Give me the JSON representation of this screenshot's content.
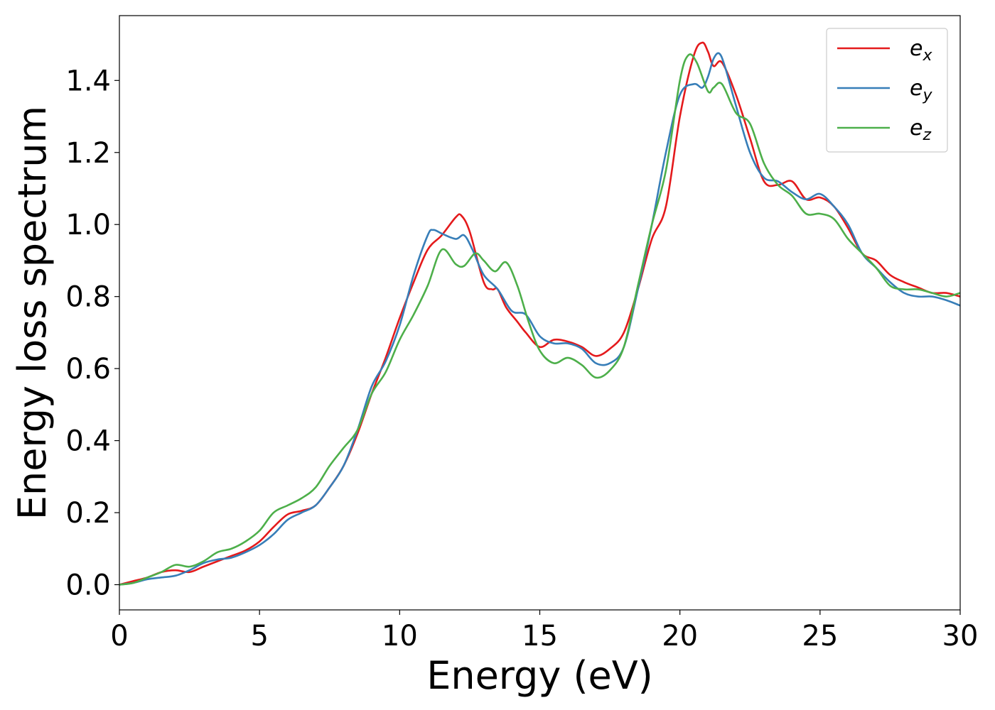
{
  "chart_data": {
    "type": "line",
    "xlabel": "Energy (eV)",
    "ylabel": "Energy loss spectrum",
    "xlim": [
      0,
      30
    ],
    "ylim": [
      -0.07,
      1.58
    ],
    "xticks": [
      0,
      5,
      10,
      15,
      20,
      25,
      30
    ],
    "xtick_labels": [
      "0",
      "5",
      "10",
      "15",
      "20",
      "25",
      "30"
    ],
    "yticks": [
      0.0,
      0.2,
      0.4,
      0.6,
      0.8,
      1.0,
      1.2,
      1.4
    ],
    "ytick_labels": [
      "0.0",
      "0.2",
      "0.4",
      "0.6",
      "0.8",
      "1.0",
      "1.2",
      "1.4"
    ],
    "grid": false,
    "legend_position": "top-right",
    "series": [
      {
        "name": "e_x",
        "label_base": "e",
        "label_sub": "x",
        "color": "#e41a1c",
        "x": [
          0,
          0.5,
          1,
          1.5,
          2,
          2.5,
          3,
          3.5,
          4,
          4.5,
          5,
          5.5,
          6,
          6.5,
          7,
          7.5,
          8,
          8.5,
          9,
          9.5,
          10,
          10.5,
          11,
          11.5,
          12,
          12.2,
          12.5,
          13,
          13.3,
          13.5,
          13.8,
          14.2,
          14.5,
          15,
          15.5,
          16,
          16.5,
          17,
          17.5,
          18,
          18.5,
          19,
          19.5,
          20,
          20.5,
          20.8,
          21,
          21.2,
          21.5,
          22,
          22.5,
          23,
          23.5,
          24,
          24.5,
          25,
          25.5,
          26,
          26.5,
          27,
          27.5,
          28,
          28.5,
          29,
          29.5,
          30
        ],
        "y": [
          0.0,
          0.01,
          0.02,
          0.035,
          0.04,
          0.035,
          0.05,
          0.065,
          0.08,
          0.095,
          0.12,
          0.16,
          0.195,
          0.205,
          0.22,
          0.27,
          0.33,
          0.42,
          0.53,
          0.63,
          0.74,
          0.84,
          0.93,
          0.97,
          1.02,
          1.025,
          0.98,
          0.84,
          0.82,
          0.82,
          0.77,
          0.73,
          0.7,
          0.66,
          0.68,
          0.675,
          0.66,
          0.635,
          0.655,
          0.7,
          0.82,
          0.96,
          1.05,
          1.3,
          1.47,
          1.505,
          1.48,
          1.44,
          1.45,
          1.36,
          1.24,
          1.12,
          1.11,
          1.12,
          1.07,
          1.075,
          1.05,
          0.99,
          0.92,
          0.9,
          0.86,
          0.84,
          0.825,
          0.81,
          0.81,
          0.8
        ]
      },
      {
        "name": "e_y",
        "label_base": "e",
        "label_sub": "y",
        "color": "#377eb8",
        "x": [
          0,
          0.5,
          1,
          1.5,
          2,
          2.5,
          3,
          3.5,
          4,
          4.5,
          5,
          5.5,
          6,
          6.5,
          7,
          7.5,
          8,
          8.5,
          9,
          9.5,
          10,
          10.5,
          11,
          11.2,
          11.5,
          12,
          12.3,
          12.6,
          13,
          13.5,
          14,
          14.5,
          15,
          15.5,
          16,
          16.5,
          17,
          17.5,
          18,
          18.5,
          19,
          19.5,
          20,
          20.5,
          20.8,
          21,
          21.2,
          21.4,
          21.6,
          22,
          22.5,
          23,
          23.5,
          24,
          24.5,
          25,
          25.5,
          26,
          26.5,
          27,
          27.5,
          28,
          28.5,
          29,
          29.5,
          30
        ],
        "y": [
          0.0,
          0.005,
          0.015,
          0.02,
          0.025,
          0.04,
          0.06,
          0.07,
          0.075,
          0.09,
          0.11,
          0.14,
          0.18,
          0.2,
          0.22,
          0.27,
          0.33,
          0.43,
          0.55,
          0.62,
          0.72,
          0.86,
          0.97,
          0.985,
          0.975,
          0.96,
          0.97,
          0.93,
          0.86,
          0.82,
          0.76,
          0.75,
          0.69,
          0.67,
          0.67,
          0.655,
          0.615,
          0.615,
          0.66,
          0.82,
          1.0,
          1.2,
          1.36,
          1.39,
          1.38,
          1.41,
          1.46,
          1.475,
          1.44,
          1.33,
          1.2,
          1.13,
          1.12,
          1.09,
          1.07,
          1.085,
          1.05,
          1.0,
          0.92,
          0.88,
          0.84,
          0.81,
          0.8,
          0.8,
          0.79,
          0.775
        ]
      },
      {
        "name": "e_z",
        "label_base": "e",
        "label_sub": "z",
        "color": "#4daf4a",
        "x": [
          0,
          0.5,
          1,
          1.5,
          2,
          2.5,
          3,
          3.5,
          4,
          4.5,
          5,
          5.5,
          6,
          6.5,
          7,
          7.5,
          8,
          8.5,
          9,
          9.5,
          10,
          10.5,
          11,
          11.5,
          12,
          12.3,
          12.7,
          13,
          13.4,
          13.8,
          14.2,
          14.6,
          15,
          15.5,
          16,
          16.5,
          17,
          17.5,
          18,
          18.5,
          19,
          19.5,
          20,
          20.3,
          20.6,
          21,
          21.2,
          21.5,
          22,
          22.5,
          23,
          23.5,
          24,
          24.5,
          25,
          25.5,
          26,
          26.5,
          27,
          27.5,
          28,
          28.5,
          29,
          29.5,
          30
        ],
        "y": [
          0.0,
          0.005,
          0.02,
          0.035,
          0.055,
          0.05,
          0.065,
          0.09,
          0.1,
          0.12,
          0.15,
          0.2,
          0.22,
          0.24,
          0.27,
          0.33,
          0.38,
          0.43,
          0.53,
          0.59,
          0.68,
          0.75,
          0.83,
          0.93,
          0.89,
          0.885,
          0.92,
          0.9,
          0.87,
          0.895,
          0.83,
          0.73,
          0.65,
          0.615,
          0.63,
          0.61,
          0.575,
          0.595,
          0.66,
          0.83,
          1.0,
          1.15,
          1.4,
          1.47,
          1.45,
          1.37,
          1.38,
          1.39,
          1.31,
          1.28,
          1.17,
          1.11,
          1.08,
          1.03,
          1.03,
          1.015,
          0.96,
          0.92,
          0.88,
          0.83,
          0.82,
          0.82,
          0.81,
          0.8,
          0.81
        ]
      }
    ]
  }
}
